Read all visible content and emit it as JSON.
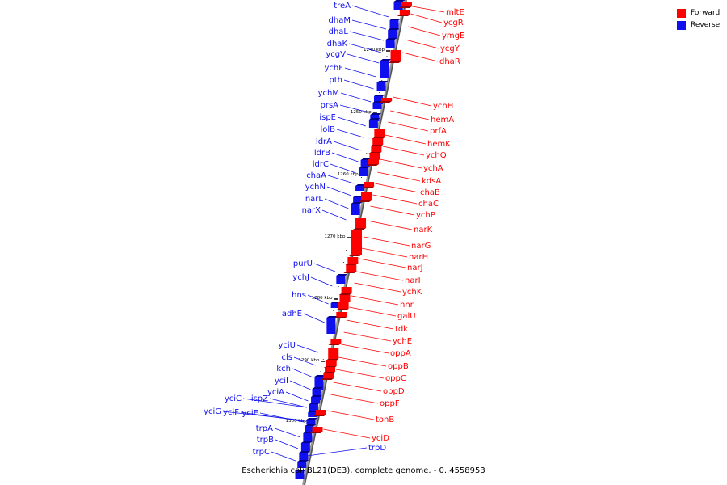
{
  "legend": {
    "forward_label": "Forward",
    "reverse_label": "Reverse",
    "forward_color": "#ff0000",
    "reverse_color": "#1010ee"
  },
  "caption": "Escherichia coli BL21(DE3), complete genome. - 0..4558953",
  "scale_labels": [
    "1240 kbp",
    "1250 kbp",
    "1260 kbp",
    "1270 kbp",
    "1280 kbp",
    "1290 kbp",
    "1300 kbp"
  ],
  "reverse_genes": [
    "treA",
    "dhaM",
    "dhaL",
    "dhaK",
    "ycgV",
    "ychF",
    "pth",
    "ychM",
    "prsA",
    "ispE",
    "lolB",
    "ldrA",
    "ldrB",
    "ldrC",
    "chaA",
    "ychN",
    "narL",
    "narX",
    "purU",
    "ychJ",
    "hns",
    "adhE",
    "yciU",
    "cls",
    "kch",
    "yciI",
    "yciA",
    "yciC",
    "ispZ",
    "yciG",
    "yciF",
    "yciE",
    "trpA",
    "trpB",
    "trpC",
    "trpD"
  ],
  "forward_genes": [
    "mltE",
    "ycgR",
    "ymgE",
    "ycgY",
    "dhaR",
    "ychH",
    "hemA",
    "prfA",
    "hemK",
    "ychQ",
    "ychA",
    "kdsA",
    "chaB",
    "chaC",
    "ychP",
    "narK",
    "narG",
    "narH",
    "narJ",
    "narI",
    "ychK",
    "hnr",
    "galU",
    "tdk",
    "ychE",
    "oppA",
    "oppB",
    "oppC",
    "oppD",
    "oppF",
    "tonB",
    "yciD"
  ]
}
